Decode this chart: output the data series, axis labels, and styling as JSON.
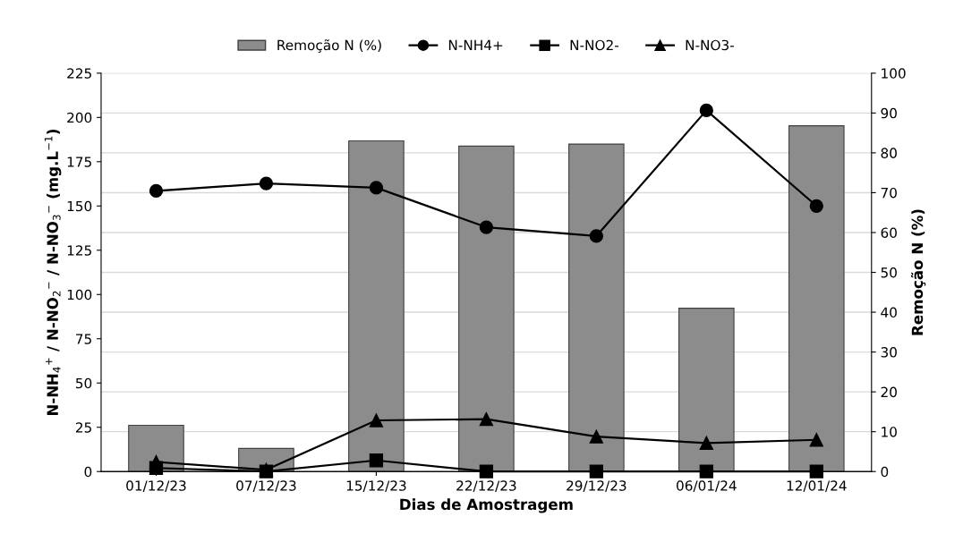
{
  "chart_data": {
    "type": "bar",
    "xlabel": "Dias de Amostragem",
    "ylabel": "N-NH$_{4}$$^{+}$ / N-NO$_{2}$$^{−}$ / N-NO$_{3}$$^{−}$ (mg.L$^{−1}$)",
    "y2label": "Remoção N (%)",
    "categories": [
      "01/12/23",
      "07/12/23",
      "15/12/23",
      "22/12/23",
      "29/12/23",
      "06/01/24",
      "12/01/24"
    ],
    "series": [
      {
        "name": "Remoção N (%)",
        "axis": "y2",
        "color": "#8c8c8c",
        "values": [
          11.6,
          5.8,
          83.0,
          81.7,
          82.2,
          41.0,
          86.8
        ]
      },
      {
        "name": "N-NH4+",
        "type": "line",
        "marker": "circle",
        "color": "#000000",
        "values": [
          158.5,
          162.7,
          160.3,
          138,
          133,
          204,
          150
        ]
      },
      {
        "name": "N-NO2-",
        "type": "line",
        "marker": "square",
        "color": "#000000",
        "values": [
          2,
          0,
          6.3,
          0,
          0,
          0,
          0
        ]
      },
      {
        "name": "N-NO3-",
        "type": "line",
        "marker": "triangle",
        "color": "#000000",
        "values": [
          5.4,
          1,
          28.9,
          29.6,
          19.7,
          16.1,
          17.9
        ]
      }
    ],
    "ylim": [
      0,
      225
    ],
    "yticks": [
      0,
      25,
      50,
      75,
      100,
      125,
      150,
      175,
      200,
      225
    ],
    "y2lim": [
      0,
      100
    ],
    "y2ticks": [
      0,
      10,
      20,
      30,
      40,
      50,
      60,
      70,
      80,
      90,
      100
    ],
    "grid": "y",
    "legend": "top"
  }
}
